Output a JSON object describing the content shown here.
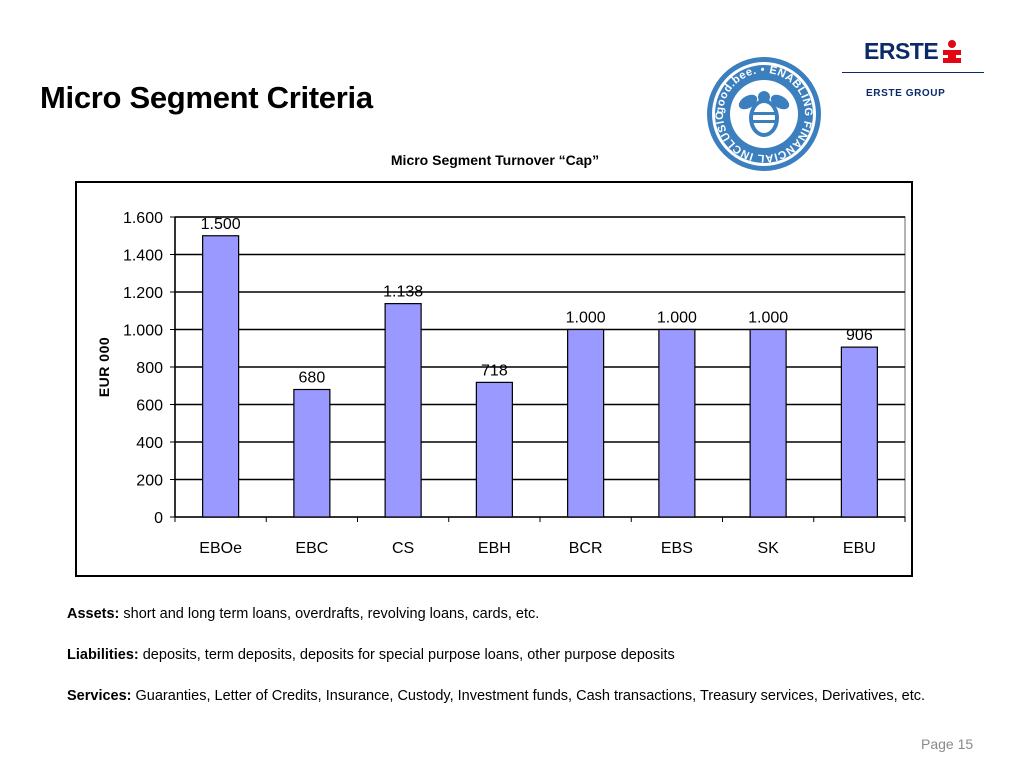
{
  "slide": {
    "title": "Micro Segment Criteria",
    "page": "Page 15"
  },
  "logo": {
    "brand": "ERSTE",
    "group": "ERSTE GROUP",
    "seal_text": "good.bee. • ENABLING FINANCIAL INCLUSION"
  },
  "colors": {
    "bar_fill": "#9999ff",
    "bar_stroke": "#000000",
    "brand_blue": "#0a2a6b",
    "brand_red": "#e30613",
    "seal_blue": "#3c7fbf"
  },
  "chart_data": {
    "type": "bar",
    "title": "Micro Segment Turnover “Cap”",
    "ylabel": "EUR 000",
    "xlabel": "",
    "categories": [
      "EBOe",
      "EBC",
      "CS",
      "EBH",
      "BCR",
      "EBS",
      "SK",
      "EBU"
    ],
    "values": [
      1500,
      680,
      1138,
      718,
      1000,
      1000,
      1000,
      906
    ],
    "data_labels": [
      "1.500",
      "680",
      "1.138",
      "718",
      "1.000",
      "1.000",
      "1.000",
      "906"
    ],
    "ylim": [
      0,
      1600
    ],
    "yticks": [
      0,
      200,
      400,
      600,
      800,
      1000,
      1200,
      1400,
      1600
    ],
    "ytick_labels": [
      "0",
      "200",
      "400",
      "600",
      "800",
      "1.000",
      "1.200",
      "1.400",
      "1.600"
    ],
    "grid": true,
    "legend": "none"
  },
  "notes": [
    {
      "label": "Assets:",
      "text": " short and long term loans, overdrafts, revolving loans, cards, etc."
    },
    {
      "label": "Liabilities:",
      "text": " deposits, term deposits, deposits for special purpose loans, other purpose deposits"
    },
    {
      "label": "Services:",
      "text": " Guaranties, Letter of Credits, Insurance, Custody, Investment funds, Cash transactions, Treasury services, Derivatives, etc."
    }
  ]
}
